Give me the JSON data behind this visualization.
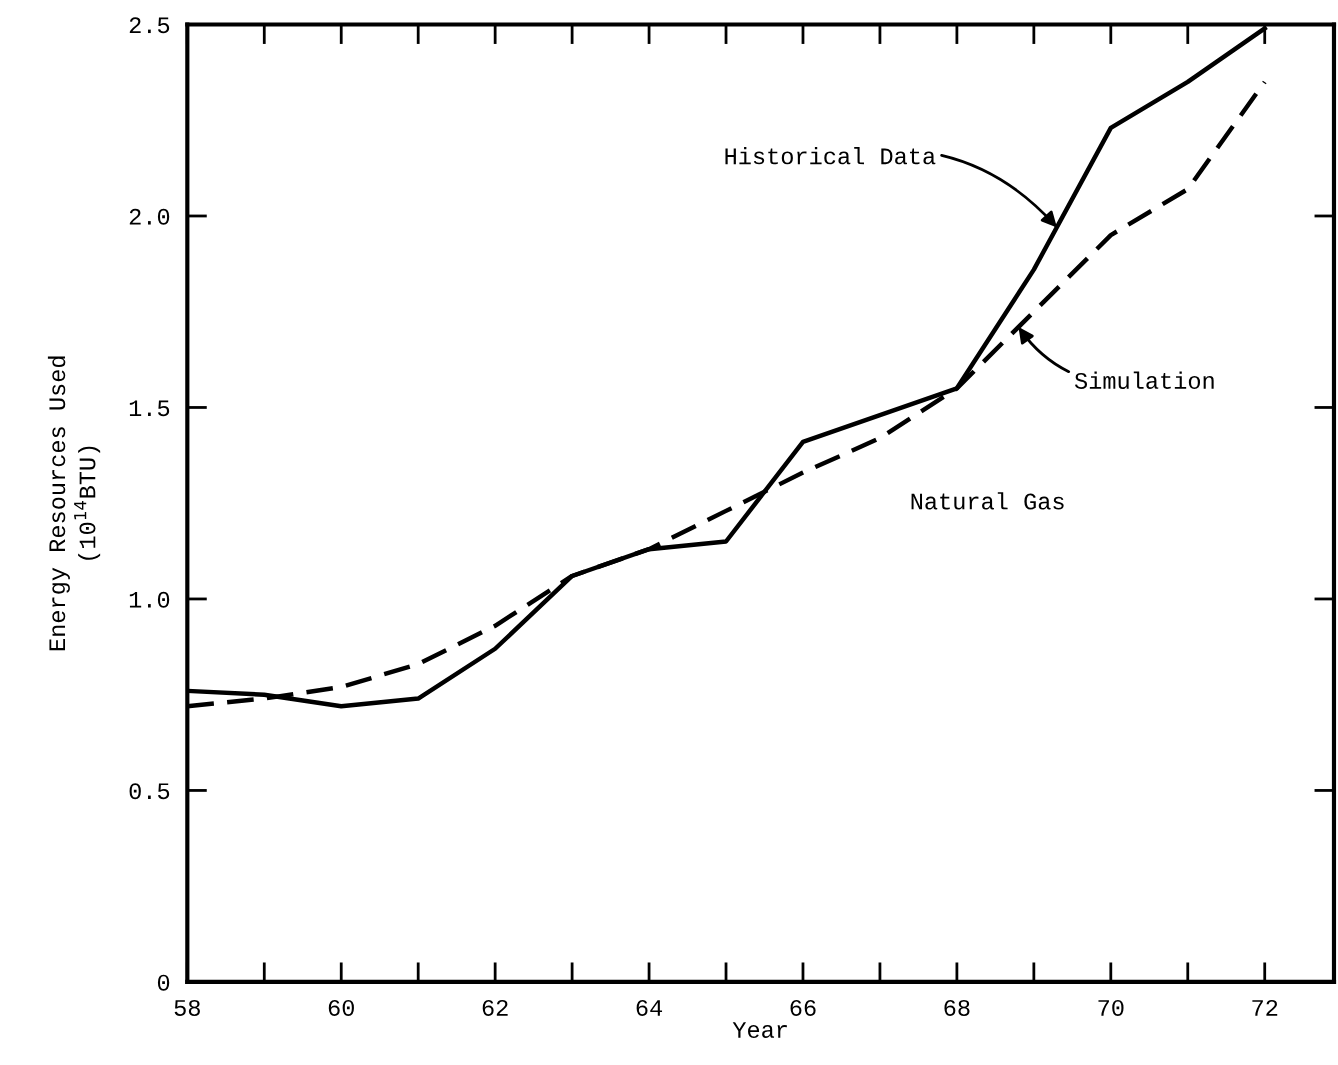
{
  "chart_data": {
    "type": "line",
    "xlabel": "Year",
    "ylabel": "Energy Resources Used\n(10$^{14}$BTU)",
    "x": [
      58,
      59,
      60,
      61,
      62,
      63,
      64,
      65,
      66,
      67,
      68,
      69,
      70,
      71,
      72
    ],
    "series": [
      {
        "color": "#000000",
        "line_style": "solid",
        "values": [
          0.76,
          0.75,
          0.72,
          0.74,
          0.87,
          1.06,
          1.13,
          1.15,
          1.41,
          1.48,
          1.55,
          1.86,
          2.23,
          2.35,
          2.49
        ]
      },
      {
        "color": "#000000",
        "line_style": "dashed",
        "values": [
          0.72,
          0.74,
          0.77,
          0.83,
          0.93,
          1.06,
          1.13,
          1.23,
          1.33,
          1.42,
          1.55,
          1.75,
          1.95,
          2.07,
          2.35
        ]
      }
    ],
    "annotations": [
      {
        "text": "Historical Data",
        "x": 69.3,
        "y": 1.97
      },
      {
        "text": "Simulation",
        "x": 68.8,
        "y": 1.71
      },
      "Natural Gas"
    ],
    "xlim": [
      58,
      72.9
    ],
    "ylim": [
      0,
      2.5
    ],
    "xticks": [
      58,
      60,
      62,
      64,
      66,
      68,
      70,
      72
    ],
    "yticks": [
      {
        "value": 0,
        "label": "0"
      },
      {
        "value": 0.5,
        "label": "0.5"
      },
      {
        "value": 1,
        "label": "1.0"
      },
      {
        "value": 1.5,
        "label": "1.5"
      },
      {
        "value": 2,
        "label": "2.0"
      },
      {
        "value": 2.5,
        "label": "2.5"
      }
    ],
    "grid": false,
    "legend": false,
    "marker": "none"
  }
}
